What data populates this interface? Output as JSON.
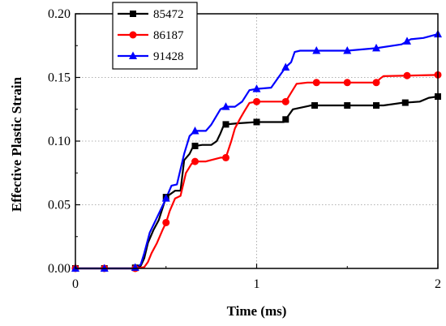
{
  "chart_data": {
    "type": "line",
    "xlabel": "Time (ms)",
    "ylabel": "Effective Plastic Strain",
    "xlim": [
      0,
      2
    ],
    "ylim": [
      0,
      0.2
    ],
    "xticks": [
      "0",
      "1",
      "2"
    ],
    "yticks": [
      "0.00",
      "0.05",
      "0.10",
      "0.15",
      "0.20"
    ],
    "grid": true,
    "legend_position": "top-left",
    "series": [
      {
        "name": "85472",
        "color": "#000000",
        "marker": "square",
        "x": [
          0,
          0.16,
          0.32,
          0.36,
          0.38,
          0.4,
          0.43,
          0.46,
          0.48,
          0.5,
          0.55,
          0.58,
          0.6,
          0.63,
          0.65,
          0.7,
          0.75,
          0.78,
          0.8,
          0.82,
          0.9,
          1.0,
          1.1,
          1.15,
          1.2,
          1.3,
          1.5,
          1.7,
          1.8,
          1.9,
          1.95,
          2.0
        ],
        "y": [
          0,
          0,
          0,
          0.002,
          0.008,
          0.02,
          0.03,
          0.038,
          0.047,
          0.056,
          0.061,
          0.061,
          0.085,
          0.09,
          0.096,
          0.097,
          0.097,
          0.1,
          0.106,
          0.113,
          0.114,
          0.115,
          0.115,
          0.115,
          0.125,
          0.128,
          0.128,
          0.128,
          0.13,
          0.131,
          0.134,
          0.135
        ],
        "markers": [
          0,
          0.16,
          0.33,
          0.5,
          0.66,
          0.83,
          1.0,
          1.16,
          1.32,
          1.5,
          1.66,
          1.82,
          2.0
        ]
      },
      {
        "name": "86187",
        "color": "#ff0000",
        "marker": "circle",
        "x": [
          0,
          0.16,
          0.34,
          0.38,
          0.4,
          0.42,
          0.45,
          0.48,
          0.5,
          0.52,
          0.55,
          0.58,
          0.61,
          0.64,
          0.66,
          0.72,
          0.8,
          0.83,
          0.86,
          0.88,
          0.91,
          0.93,
          0.96,
          1.0,
          1.16,
          1.19,
          1.22,
          1.28,
          1.33,
          1.5,
          1.66,
          1.68,
          1.7,
          2.0
        ],
        "y": [
          0,
          0,
          0,
          0.001,
          0.005,
          0.012,
          0.02,
          0.03,
          0.036,
          0.045,
          0.055,
          0.057,
          0.075,
          0.082,
          0.084,
          0.084,
          0.087,
          0.087,
          0.1,
          0.11,
          0.118,
          0.123,
          0.13,
          0.131,
          0.131,
          0.138,
          0.145,
          0.146,
          0.146,
          0.146,
          0.146,
          0.149,
          0.151,
          0.152
        ],
        "markers": [
          0,
          0.16,
          0.33,
          0.5,
          0.66,
          0.83,
          1.0,
          1.16,
          1.33,
          1.5,
          1.66,
          1.83,
          2.0
        ]
      },
      {
        "name": "91428",
        "color": "#0000ff",
        "marker": "triangle",
        "x": [
          0,
          0.16,
          0.32,
          0.36,
          0.38,
          0.41,
          0.45,
          0.48,
          0.5,
          0.53,
          0.56,
          0.6,
          0.63,
          0.66,
          0.72,
          0.75,
          0.8,
          0.83,
          0.88,
          0.92,
          0.96,
          1.0,
          1.08,
          1.12,
          1.16,
          1.19,
          1.21,
          1.24,
          1.32,
          1.5,
          1.66,
          1.8,
          1.85,
          1.92,
          2.0
        ],
        "y": [
          0,
          0,
          0,
          0.003,
          0.012,
          0.028,
          0.04,
          0.049,
          0.055,
          0.065,
          0.066,
          0.09,
          0.104,
          0.108,
          0.108,
          0.113,
          0.125,
          0.127,
          0.127,
          0.131,
          0.14,
          0.141,
          0.142,
          0.15,
          0.158,
          0.162,
          0.17,
          0.171,
          0.171,
          0.171,
          0.173,
          0.176,
          0.18,
          0.181,
          0.184
        ],
        "markers": [
          0,
          0.16,
          0.33,
          0.5,
          0.66,
          0.83,
          1.0,
          1.16,
          1.33,
          1.5,
          1.66,
          1.83,
          2.0
        ]
      }
    ]
  }
}
